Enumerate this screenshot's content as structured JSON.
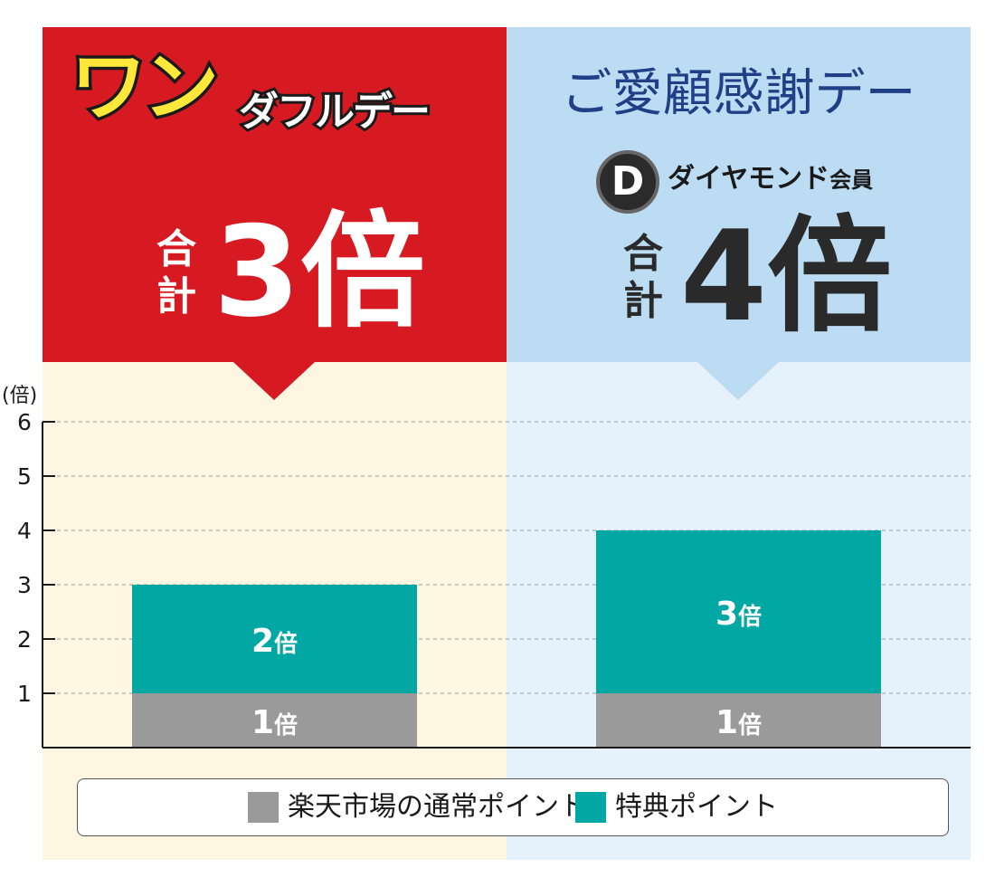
{
  "header": {
    "left": {
      "logo_main": "ワン",
      "logo_sub": "ダフルデー",
      "total_label_top": "合",
      "total_label_bottom": "計",
      "total_value": "3倍",
      "color": "#d71a21"
    },
    "right": {
      "title": "ご愛顧感謝デー",
      "badge_letter": "D",
      "member_label": "ダイヤモンド",
      "member_suffix": "会員",
      "total_label_top": "合",
      "total_label_bottom": "計",
      "total_value": "4倍",
      "color": "#bcdcf3"
    }
  },
  "chart_data": {
    "type": "bar",
    "stacked": true,
    "unit_label": "(倍)",
    "categories": [
      "ワンダフルデー",
      "ご愛顧感謝デー"
    ],
    "ylim": [
      0,
      6
    ],
    "yticks": [
      1,
      2,
      3,
      4,
      5,
      6
    ],
    "grid": true,
    "series": [
      {
        "name": "楽天市場の通常ポイント",
        "values": [
          1,
          1
        ],
        "labels": [
          "1倍",
          "1倍"
        ],
        "color": "#9a9a9a"
      },
      {
        "name": "特典ポイント",
        "values": [
          2,
          3
        ],
        "labels": [
          "2倍",
          "3倍"
        ],
        "color": "#00a7a3"
      }
    ],
    "legend_position": "bottom"
  }
}
